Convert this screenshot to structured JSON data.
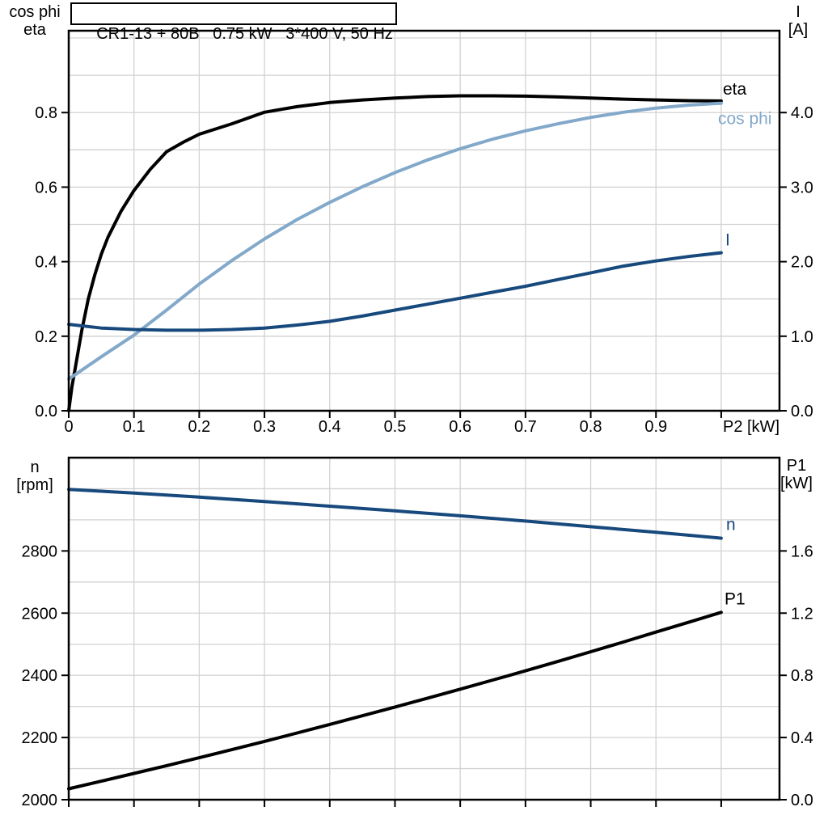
{
  "background": "#ffffff",
  "palette": {
    "frame": "#000000",
    "grid": "#d2d2d2",
    "black": "#000000",
    "dark_blue": "#17497d",
    "light_blue": "#82a8ca"
  },
  "chart_data": [
    {
      "type": "line",
      "title": "CR1-13 + 80B   0.75 kW   3*400 V, 50 Hz",
      "x_axis": {
        "label": "P2 [kW]",
        "range": [
          0,
          1.0893
        ],
        "ticks": [
          0,
          0.1,
          0.2,
          0.3,
          0.4,
          0.5,
          0.6,
          0.7,
          0.8,
          0.9,
          1.0
        ],
        "tick_labels": [
          "0",
          "0.1",
          "0.2",
          "0.3",
          "0.4",
          "0.5",
          "0.6",
          "0.7",
          "0.8",
          "0.9",
          ""
        ],
        "grid": [
          0.1,
          0.2,
          0.3,
          0.4,
          0.5,
          0.6,
          0.7,
          0.8,
          0.9,
          1.0
        ]
      },
      "y_left": {
        "label_lines": [
          "cos phi",
          "eta"
        ],
        "range": [
          0,
          1.0196
        ],
        "ticks": [
          0,
          0.2,
          0.4,
          0.6,
          0.8
        ],
        "tick_labels": [
          "0.0",
          "0.2",
          "0.4",
          "0.6",
          "0.8"
        ],
        "grid": [
          0.1,
          0.2,
          0.3,
          0.4,
          0.5,
          0.6,
          0.7,
          0.8,
          0.9,
          1.0
        ]
      },
      "y_right": {
        "label_lines": [
          "I",
          "[A]"
        ],
        "range": [
          0,
          5.098
        ],
        "ticks": [
          0,
          1,
          2,
          3,
          4
        ],
        "tick_labels": [
          "0.0",
          "1.0",
          "2.0",
          "3.0",
          "4.0"
        ]
      },
      "series": [
        {
          "name": "eta",
          "label": "eta",
          "axis": "left",
          "color": "#000000",
          "width": 4,
          "label_offset": [
            2,
            -8
          ],
          "points": [
            [
              0,
              0
            ],
            [
              0.005,
              0.065
            ],
            [
              0.01,
              0.115
            ],
            [
              0.02,
              0.215
            ],
            [
              0.03,
              0.3
            ],
            [
              0.04,
              0.365
            ],
            [
              0.05,
              0.42
            ],
            [
              0.06,
              0.465
            ],
            [
              0.08,
              0.535
            ],
            [
              0.1,
              0.591
            ],
            [
              0.125,
              0.648
            ],
            [
              0.15,
              0.695
            ],
            [
              0.175,
              0.72
            ],
            [
              0.2,
              0.742
            ],
            [
              0.25,
              0.77
            ],
            [
              0.3,
              0.801
            ],
            [
              0.35,
              0.816
            ],
            [
              0.4,
              0.827
            ],
            [
              0.45,
              0.834
            ],
            [
              0.5,
              0.839
            ],
            [
              0.55,
              0.843
            ],
            [
              0.6,
              0.845
            ],
            [
              0.65,
              0.845
            ],
            [
              0.7,
              0.844
            ],
            [
              0.75,
              0.842
            ],
            [
              0.8,
              0.839
            ],
            [
              0.85,
              0.836
            ],
            [
              0.9,
              0.834
            ],
            [
              0.95,
              0.832
            ],
            [
              1.0,
              0.831
            ]
          ]
        },
        {
          "name": "cos-phi",
          "label": "cos phi",
          "axis": "left",
          "color": "#82a8ca",
          "width": 4,
          "label_offset": [
            -4,
            26
          ],
          "points": [
            [
              0,
              0.085
            ],
            [
              0.05,
              0.145
            ],
            [
              0.1,
              0.203
            ],
            [
              0.15,
              0.27
            ],
            [
              0.2,
              0.34
            ],
            [
              0.25,
              0.403
            ],
            [
              0.3,
              0.461
            ],
            [
              0.35,
              0.513
            ],
            [
              0.4,
              0.559
            ],
            [
              0.45,
              0.601
            ],
            [
              0.5,
              0.639
            ],
            [
              0.55,
              0.673
            ],
            [
              0.6,
              0.703
            ],
            [
              0.65,
              0.729
            ],
            [
              0.7,
              0.751
            ],
            [
              0.75,
              0.77
            ],
            [
              0.8,
              0.787
            ],
            [
              0.85,
              0.801
            ],
            [
              0.9,
              0.812
            ],
            [
              0.95,
              0.82
            ],
            [
              1.0,
              0.825
            ]
          ]
        },
        {
          "name": "current",
          "label": "I",
          "axis": "right",
          "color": "#17497d",
          "width": 4,
          "label_offset": [
            5,
            -9
          ],
          "points": [
            [
              0,
              1.16
            ],
            [
              0.05,
              1.11
            ],
            [
              0.1,
              1.09
            ],
            [
              0.15,
              1.08
            ],
            [
              0.2,
              1.08
            ],
            [
              0.25,
              1.09
            ],
            [
              0.3,
              1.11
            ],
            [
              0.35,
              1.15
            ],
            [
              0.4,
              1.2
            ],
            [
              0.45,
              1.27
            ],
            [
              0.5,
              1.35
            ],
            [
              0.55,
              1.43
            ],
            [
              0.6,
              1.51
            ],
            [
              0.65,
              1.59
            ],
            [
              0.7,
              1.67
            ],
            [
              0.75,
              1.76
            ],
            [
              0.8,
              1.85
            ],
            [
              0.85,
              1.94
            ],
            [
              0.9,
              2.01
            ],
            [
              0.95,
              2.07
            ],
            [
              1.0,
              2.12
            ]
          ]
        }
      ]
    },
    {
      "type": "line",
      "title": "",
      "x_axis": {
        "label": "",
        "range": [
          0,
          1.0893
        ],
        "ticks": [
          0,
          0.1,
          0.2,
          0.3,
          0.4,
          0.5,
          0.6,
          0.7,
          0.8,
          0.9,
          1.0
        ],
        "tick_labels": [
          "",
          "",
          "",
          "",
          "",
          "",
          "",
          "",
          "",
          "",
          ""
        ],
        "grid": [
          0.1,
          0.2,
          0.3,
          0.4,
          0.5,
          0.6,
          0.7,
          0.8,
          0.9,
          1.0
        ]
      },
      "y_left": {
        "label_lines": [
          "n",
          "[rpm]"
        ],
        "range": [
          2000,
          3100
        ],
        "ticks": [
          2000,
          2200,
          2400,
          2600,
          2800
        ],
        "tick_labels": [
          "2000",
          "2200",
          "2400",
          "2600",
          "2800"
        ],
        "grid": [
          2100,
          2200,
          2300,
          2400,
          2500,
          2600,
          2700,
          2800,
          2900,
          3000
        ]
      },
      "y_right": {
        "label_lines": [
          "P1",
          "[kW]"
        ],
        "range": [
          0,
          2.2
        ],
        "ticks": [
          0,
          0.4,
          0.8,
          1.2,
          1.6
        ],
        "tick_labels": [
          "0.0",
          "0.4",
          "0.8",
          "1.2",
          "1.6"
        ]
      },
      "series": [
        {
          "name": "speed",
          "label": "n",
          "axis": "left",
          "color": "#17497d",
          "width": 4,
          "label_offset": [
            6,
            -10
          ],
          "points": [
            [
              0,
              2998
            ],
            [
              0.1,
              2986
            ],
            [
              0.2,
              2973
            ],
            [
              0.3,
              2959
            ],
            [
              0.4,
              2944
            ],
            [
              0.5,
              2929
            ],
            [
              0.6,
              2913
            ],
            [
              0.7,
              2896
            ],
            [
              0.8,
              2878
            ],
            [
              0.9,
              2860
            ],
            [
              1.0,
              2841
            ]
          ]
        },
        {
          "name": "p1",
          "label": "P1",
          "axis": "right",
          "color": "#000000",
          "width": 4,
          "label_offset": [
            4,
            -10
          ],
          "points": [
            [
              0,
              0.07
            ],
            [
              0.05,
              0.119
            ],
            [
              0.1,
              0.169
            ],
            [
              0.15,
              0.219
            ],
            [
              0.2,
              0.27
            ],
            [
              0.25,
              0.322
            ],
            [
              0.3,
              0.375
            ],
            [
              0.35,
              0.429
            ],
            [
              0.4,
              0.484
            ],
            [
              0.45,
              0.54
            ],
            [
              0.5,
              0.596
            ],
            [
              0.55,
              0.653
            ],
            [
              0.6,
              0.711
            ],
            [
              0.65,
              0.77
            ],
            [
              0.7,
              0.829
            ],
            [
              0.75,
              0.89
            ],
            [
              0.8,
              0.952
            ],
            [
              0.85,
              1.014
            ],
            [
              0.9,
              1.078
            ],
            [
              0.95,
              1.141
            ],
            [
              1.0,
              1.205
            ]
          ]
        }
      ]
    }
  ]
}
